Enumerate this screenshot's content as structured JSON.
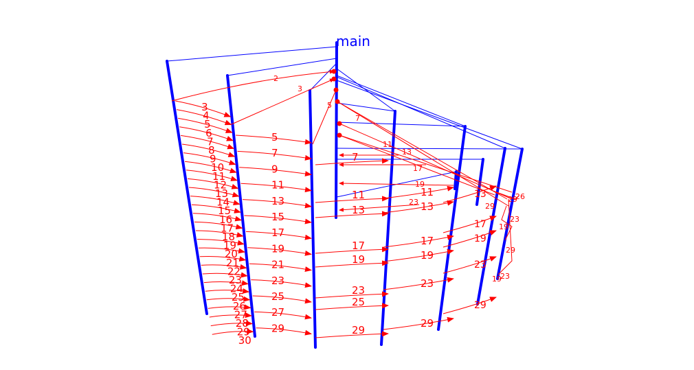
{
  "diagram": {
    "title": "main",
    "colors": {
      "lifeline": "#0000ff",
      "message": "#ff0000",
      "background": "#ffffff"
    },
    "message_labels": {
      "l0": "3",
      "l1": "4",
      "l2": "5",
      "l3": "6",
      "l4": "7",
      "l5": "8",
      "l6": "9",
      "l7": "10",
      "l8": "11",
      "l9": "12",
      "l10": "13",
      "l11": "14",
      "l12": "15",
      "l13": "16",
      "l14": "17",
      "l15": "18",
      "l16": "19",
      "l17": "20",
      "l18": "21",
      "l19": "22",
      "l20": "23",
      "l21": "24",
      "l22": "25",
      "l23": "26",
      "l24": "27",
      "l25": "28",
      "l26": "29",
      "l27": "30"
    },
    "odd_labels": [
      "5",
      "7",
      "9",
      "11",
      "13",
      "15",
      "17",
      "19",
      "21",
      "23",
      "25",
      "27",
      "29"
    ],
    "col3_labels": [
      "7",
      "11",
      "13",
      "17",
      "19",
      "23",
      "25",
      "29"
    ],
    "col4_labels": [
      "11",
      "13",
      "17",
      "19",
      "23",
      "29"
    ],
    "col5_labels": [
      "13",
      "17",
      "19",
      "23",
      "29"
    ],
    "small_labels": [
      "2",
      "3",
      "5",
      "7",
      "11",
      "13",
      "17",
      "19",
      "23",
      "29",
      "26",
      "19",
      "23",
      "29",
      "19",
      "23",
      "29"
    ]
  }
}
